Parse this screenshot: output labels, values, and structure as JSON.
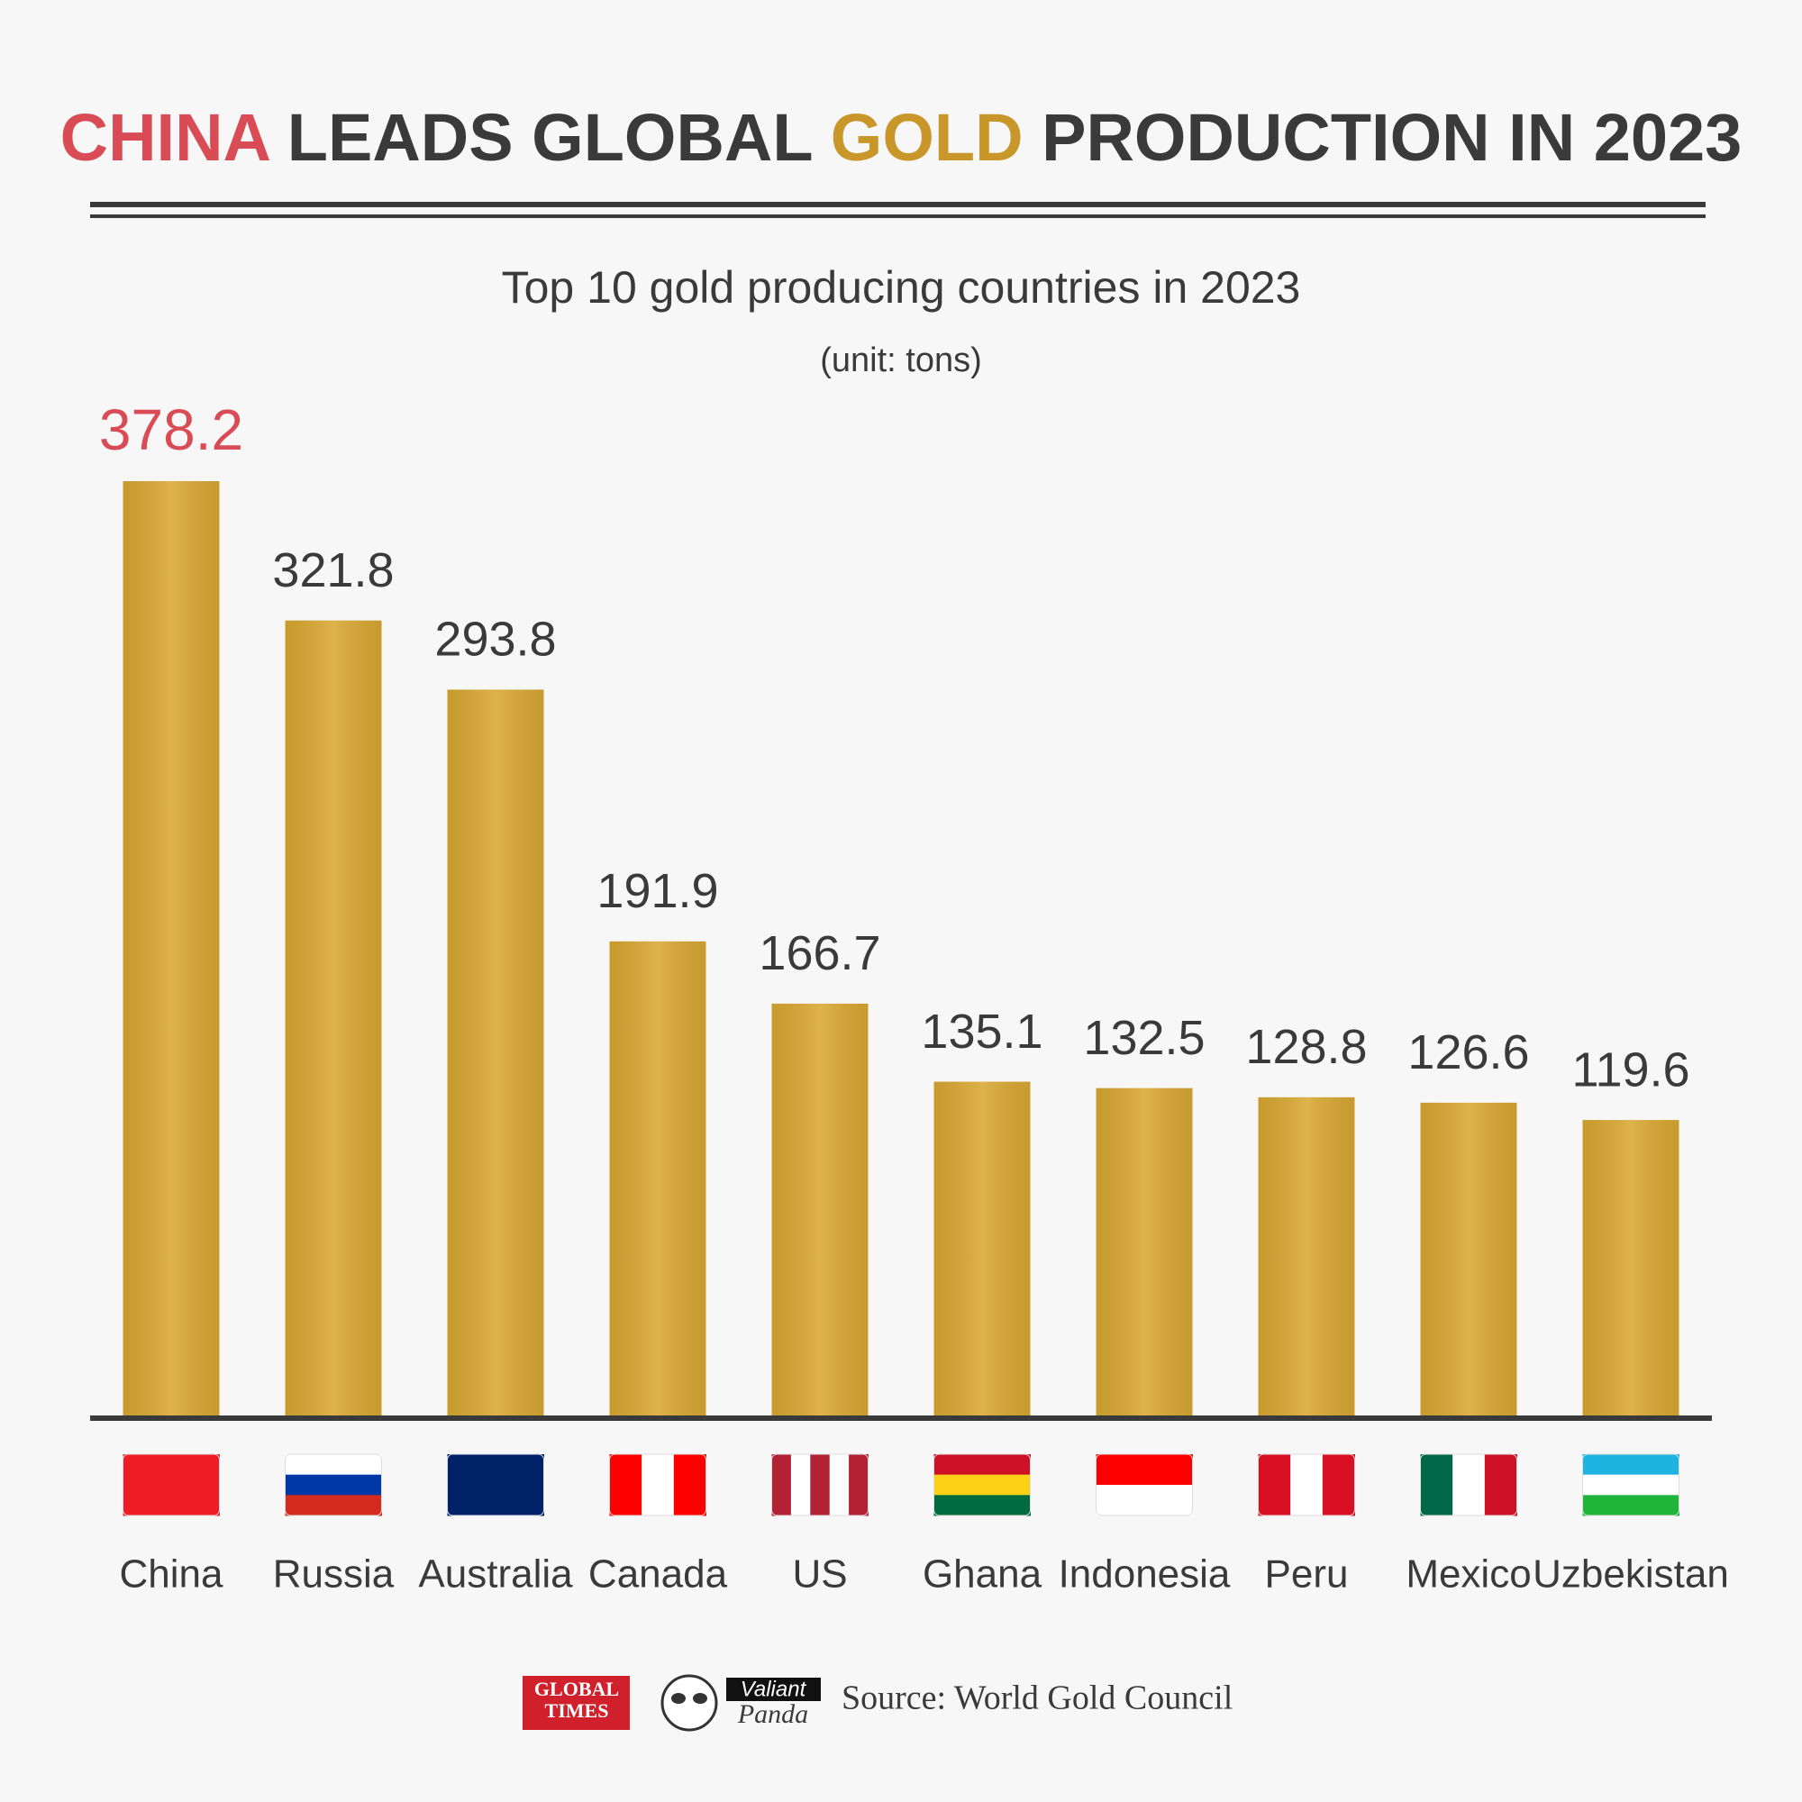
{
  "chart_data": {
    "type": "bar",
    "title": "CHINA LEADS GLOBAL GOLD PRODUCTION IN 2023",
    "subtitle": "Top 10 gold producing countries in 2023",
    "unit": "(unit: tons)",
    "categories": [
      "China",
      "Russia",
      "Australia",
      "Canada",
      "US",
      "Ghana",
      "Indonesia",
      "Peru",
      "Mexico",
      "Uzbekistan"
    ],
    "values": [
      378.2,
      321.8,
      293.8,
      191.9,
      166.7,
      135.1,
      132.5,
      128.8,
      126.6,
      119.6
    ],
    "color": "#d9a832",
    "source": "Source: World Gold Council"
  },
  "footer": {
    "logo_1": [
      "GLOBAL",
      "TIMES"
    ],
    "logo_2": [
      "Valiant",
      "Panda"
    ]
  }
}
